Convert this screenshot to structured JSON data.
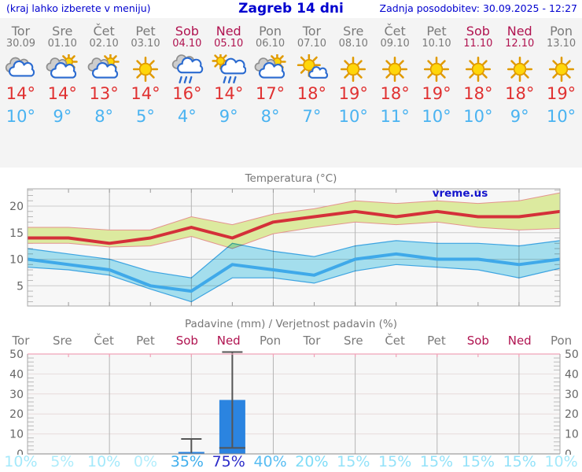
{
  "header": {
    "left_note": "(kraj lahko izberete v meniju)",
    "title": "Zagreb 14 dni",
    "updated": "Zadnja posodobitev: 30.09.2025 - 12:27"
  },
  "colors": {
    "header_text": "#0000cf",
    "day_label": "#7a7a7a",
    "weekend_label": "#b01350",
    "high_temp": "#e03131",
    "low_temp": "#4ab3f1",
    "bar_fill": "#2b84e0",
    "whisker": "#555555",
    "max_line": "#d43039",
    "max_band": "#dcea9f",
    "max_band_edge": "#e4938e",
    "min_line": "#3fa9e9",
    "min_band": "#a9e6f5",
    "panel_bg": "#f4f4f4",
    "plot_bg": "#f7f7f7",
    "grid_h": "#cccccc",
    "grid_v": "#b5b5b5",
    "precip_grid_h": "#e7dcdc",
    "precip_top_border": "#f0a3b8",
    "axis_text": "#666666",
    "watermark_color": "#1414cc"
  },
  "days": [
    {
      "name": "Tor",
      "date": "30.09",
      "weekend": false,
      "icon": "cloudy",
      "high": "14°",
      "low": "10°",
      "prob": "10%",
      "prob_color": "#a4e9fb"
    },
    {
      "name": "Sre",
      "date": "01.10",
      "weekend": false,
      "icon": "partly-cloudy",
      "high": "14°",
      "low": "9°",
      "prob": "5%",
      "prob_color": "#aeecfb"
    },
    {
      "name": "Čet",
      "date": "02.10",
      "weekend": false,
      "icon": "partly-cloudy",
      "high": "13°",
      "low": "8°",
      "prob": "10%",
      "prob_color": "#a4e9fb"
    },
    {
      "name": "Pet",
      "date": "03.10",
      "weekend": false,
      "icon": "sunny",
      "high": "14°",
      "low": "5°",
      "prob": "0%",
      "prob_color": "#b2edfc"
    },
    {
      "name": "Sob",
      "date": "04.10",
      "weekend": true,
      "icon": "rain",
      "high": "16°",
      "low": "4°",
      "prob": "35%",
      "prob_color": "#41afed"
    },
    {
      "name": "Ned",
      "date": "05.10",
      "weekend": true,
      "icon": "sun-rain",
      "high": "14°",
      "low": "9°",
      "prob": "75%",
      "prob_color": "#2b2bc9"
    },
    {
      "name": "Pon",
      "date": "06.10",
      "weekend": false,
      "icon": "partly-cloudy",
      "high": "17°",
      "low": "8°",
      "prob": "40%",
      "prob_color": "#58bdf2"
    },
    {
      "name": "Tor",
      "date": "07.10",
      "weekend": false,
      "icon": "mostly-sunny",
      "high": "18°",
      "low": "7°",
      "prob": "20%",
      "prob_color": "#7edcf7"
    },
    {
      "name": "Sre",
      "date": "08.10",
      "weekend": false,
      "icon": "sunny",
      "high": "19°",
      "low": "10°",
      "prob": "15%",
      "prob_color": "#93e2f9"
    },
    {
      "name": "Čet",
      "date": "09.10",
      "weekend": false,
      "icon": "sunny",
      "high": "18°",
      "low": "11°",
      "prob": "15%",
      "prob_color": "#93e2f9"
    },
    {
      "name": "Pet",
      "date": "10.10",
      "weekend": false,
      "icon": "sunny",
      "high": "19°",
      "low": "10°",
      "prob": "15%",
      "prob_color": "#93e2f9"
    },
    {
      "name": "Sob",
      "date": "11.10",
      "weekend": true,
      "icon": "sunny",
      "high": "18°",
      "low": "10°",
      "prob": "15%",
      "prob_color": "#93e2f9"
    },
    {
      "name": "Ned",
      "date": "12.10",
      "weekend": true,
      "icon": "sunny",
      "high": "18°",
      "low": "9°",
      "prob": "15%",
      "prob_color": "#93e2f9"
    },
    {
      "name": "Pon",
      "date": "13.10",
      "weekend": false,
      "icon": "sunny",
      "high": "19°",
      "low": "10°",
      "prob": "10%",
      "prob_color": "#a4e9fb"
    }
  ],
  "chart_data": [
    {
      "type": "line",
      "title": "Temperatura (°C)",
      "watermark": "vreme.us",
      "categories": [
        "Tor 30.09",
        "Sre 01.10",
        "Čet 02.10",
        "Pet 03.10",
        "Sob 04.10",
        "Ned 05.10",
        "Pon 06.10",
        "Tor 07.10",
        "Sre 08.10",
        "Čet 09.10",
        "Pet 10.10",
        "Sob 11.10",
        "Ned 12.10",
        "Pon 13.10"
      ],
      "ylabel": "°C",
      "ylim": [
        1.2,
        23.3
      ],
      "yticks": [
        5,
        10,
        15,
        20
      ],
      "grid": true,
      "series": [
        {
          "name": "max temperatura",
          "values": [
            14,
            14,
            13,
            14,
            16,
            14,
            17,
            18,
            19,
            18,
            19,
            18,
            18,
            19
          ],
          "band_upper": [
            16,
            16,
            15.5,
            15.5,
            18,
            16.5,
            18.5,
            19.5,
            21,
            20.5,
            21,
            20.5,
            21,
            22.5
          ],
          "band_lower": [
            13,
            13,
            12.3,
            12.5,
            14.3,
            12,
            14.8,
            16,
            17,
            16.5,
            17,
            16,
            15.5,
            15.8
          ]
        },
        {
          "name": "min temperatura",
          "values": [
            10,
            9,
            8,
            5,
            4,
            9,
            8,
            7,
            10,
            11,
            10,
            10,
            9,
            10
          ],
          "band_upper": [
            12,
            11,
            10,
            7.7,
            6.5,
            13,
            11.5,
            10.5,
            12.5,
            13.5,
            13,
            13,
            12.5,
            13.5
          ],
          "band_lower": [
            8.5,
            8,
            7,
            4.4,
            2,
            6.5,
            6.5,
            5.5,
            7.8,
            9,
            8.5,
            8,
            6.5,
            8.3
          ]
        }
      ]
    },
    {
      "type": "bar",
      "title": "Padavine (mm) / Verjetnost padavin (%)",
      "categories": [
        "Tor",
        "Sre",
        "Čet",
        "Pet",
        "Sob",
        "Ned",
        "Pon",
        "Tor",
        "Sre",
        "Čet",
        "Pet",
        "Sob",
        "Ned",
        "Pon"
      ],
      "ylabel": "mm",
      "ylim": [
        0,
        50
      ],
      "yticks": [
        0,
        10,
        20,
        30,
        40,
        50
      ],
      "grid": true,
      "values": [
        0,
        0,
        0,
        0,
        1,
        27,
        0,
        0,
        0,
        0,
        0,
        0,
        0,
        0
      ],
      "whisker_low": [
        null,
        null,
        null,
        null,
        0.5,
        3,
        null,
        null,
        null,
        null,
        null,
        null,
        null,
        null
      ],
      "whisker_high": [
        null,
        null,
        null,
        null,
        7.5,
        51,
        null,
        null,
        null,
        null,
        null,
        null,
        null,
        null
      ],
      "probabilities": [
        "10%",
        "5%",
        "10%",
        "0%",
        "35%",
        "75%",
        "40%",
        "20%",
        "15%",
        "15%",
        "15%",
        "15%",
        "15%",
        "10%"
      ]
    }
  ]
}
